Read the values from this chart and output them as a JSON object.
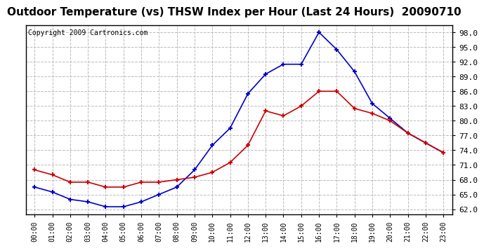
{
  "title": "Outdoor Temperature (vs) THSW Index per Hour (Last 24 Hours)  20090710",
  "copyright_text": "Copyright 2009 Cartronics.com",
  "hours": [
    "00:00",
    "01:00",
    "02:00",
    "03:00",
    "04:00",
    "05:00",
    "06:00",
    "07:00",
    "08:00",
    "09:00",
    "10:00",
    "11:00",
    "12:00",
    "13:00",
    "14:00",
    "15:00",
    "16:00",
    "17:00",
    "18:00",
    "19:00",
    "20:00",
    "21:00",
    "22:00",
    "23:00"
  ],
  "temp_red": [
    70.0,
    69.0,
    67.5,
    67.5,
    66.5,
    66.5,
    67.5,
    67.5,
    68.0,
    68.5,
    69.5,
    71.5,
    75.0,
    82.0,
    81.0,
    83.0,
    86.0,
    86.0,
    82.5,
    81.5,
    80.0,
    77.5,
    75.5,
    73.5
  ],
  "thsw_blue": [
    66.5,
    65.5,
    64.0,
    63.5,
    62.5,
    62.5,
    63.5,
    65.0,
    66.5,
    70.0,
    75.0,
    78.5,
    85.5,
    89.5,
    91.5,
    91.5,
    98.0,
    94.5,
    90.0,
    83.5,
    80.5,
    77.5,
    75.5,
    73.5
  ],
  "ylim": [
    61.0,
    99.5
  ],
  "yticks": [
    62.0,
    65.0,
    68.0,
    71.0,
    74.0,
    77.0,
    80.0,
    83.0,
    86.0,
    89.0,
    92.0,
    95.0,
    98.0
  ],
  "red_color": "#cc0000",
  "blue_color": "#0000cc",
  "grid_color": "#bbbbbb",
  "bg_color": "#ffffff",
  "plot_bg_color": "#ffffff",
  "title_fontsize": 11,
  "copyright_fontsize": 7
}
